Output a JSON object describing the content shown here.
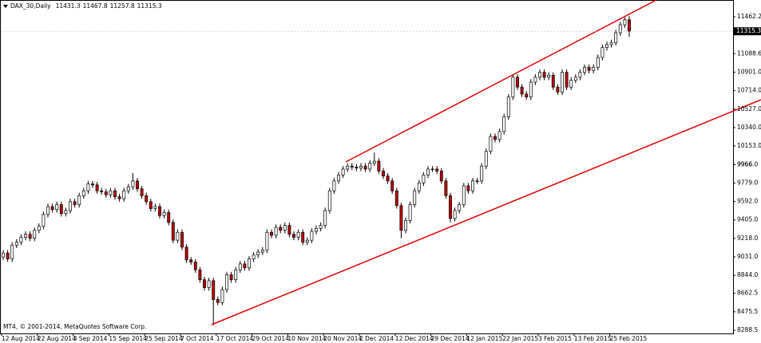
{
  "chart_data": {
    "type": "candlestick",
    "title": "DAX_30,Daily",
    "footer": "MT4, © 2001-2014, MetaQuotes Software Corp.",
    "categories": [
      "12 Aug 2014",
      null,
      null,
      null,
      null,
      null,
      null,
      null,
      "22 Aug 2014",
      null,
      null,
      null,
      null,
      null,
      null,
      null,
      "3 Sep 2014",
      null,
      null,
      null,
      null,
      null,
      null,
      null,
      "15 Sep 2014",
      null,
      null,
      null,
      null,
      null,
      null,
      null,
      "25 Sep 2014",
      null,
      null,
      null,
      null,
      null,
      null,
      null,
      "7 Oct 2014",
      null,
      null,
      null,
      null,
      null,
      null,
      null,
      "17 Oct 2014",
      null,
      null,
      null,
      null,
      null,
      null,
      null,
      "29 Oct 2014",
      null,
      null,
      null,
      null,
      null,
      null,
      null,
      "10 Nov 2014",
      null,
      null,
      null,
      null,
      null,
      null,
      null,
      "20 Nov 2014",
      null,
      null,
      null,
      null,
      null,
      null,
      null,
      "2 Dec 2014",
      null,
      null,
      null,
      null,
      null,
      null,
      null,
      "12 Dec 2014",
      null,
      null,
      null,
      null,
      null,
      null,
      null,
      "29 Dec 2014",
      null,
      null,
      null,
      null,
      null,
      null,
      null,
      "12 Jan 2015",
      null,
      null,
      null,
      null,
      null,
      null,
      null,
      "22 Jan 2015",
      null,
      null,
      null,
      null,
      null,
      null,
      null,
      "3 Feb 2015",
      null,
      null,
      null,
      null,
      null,
      null,
      null,
      "13 Feb 2015",
      null,
      null,
      null,
      null,
      null,
      null,
      null,
      "25 Feb 2015",
      null,
      null,
      null,
      null
    ],
    "open": [
      9030,
      9070,
      9010,
      9150,
      9180,
      9230,
      9260,
      9220,
      9300,
      9340,
      9460,
      9540,
      9510,
      9560,
      9470,
      9500,
      9590,
      9560,
      9650,
      9700,
      9770,
      9760,
      9700,
      9690,
      9660,
      9700,
      9640,
      9620,
      9700,
      9740,
      9800,
      9720,
      9650,
      9590,
      9520,
      9540,
      9450,
      9480,
      9380,
      9200,
      9280,
      9130,
      9000,
      8980,
      8900,
      8800,
      8720,
      8790,
      8600,
      8570,
      8700,
      8850,
      8800,
      8900,
      8960,
      8920,
      9010,
      9050,
      9080,
      9100,
      9280,
      9250,
      9330,
      9300,
      9350,
      9260,
      9230,
      9280,
      9180,
      9200,
      9290,
      9320,
      9350,
      9500,
      9700,
      9800,
      9860,
      9920,
      9950,
      9940,
      9930,
      9950,
      9920,
      9980,
      10000,
      9900,
      9850,
      9800,
      9700,
      9550,
      9300,
      9400,
      9560,
      9700,
      9780,
      9860,
      9920,
      9920,
      9900,
      9800,
      9650,
      9420,
      9500,
      9560,
      9750,
      9700,
      9800,
      9800,
      9950,
      10100,
      10250,
      10220,
      10300,
      10450,
      10650,
      10850,
      10750,
      10680,
      10650,
      10800,
      10850,
      10900,
      10850,
      10870,
      10750,
      10700,
      10900,
      10750,
      10820,
      10850,
      10900,
      10950,
      10920,
      10950,
      11050,
      11150,
      11180,
      11200,
      11300,
      11380,
      11431.3
    ],
    "high": [
      9100,
      9100,
      9180,
      9210,
      9260,
      9290,
      9290,
      9330,
      9370,
      9490,
      9570,
      9570,
      9590,
      9590,
      9530,
      9620,
      9620,
      9680,
      9730,
      9800,
      9800,
      9790,
      9730,
      9720,
      9730,
      9730,
      9670,
      9730,
      9770,
      9880,
      9830,
      9750,
      9680,
      9620,
      9570,
      9570,
      9510,
      9510,
      9410,
      9310,
      9310,
      9160,
      9030,
      9010,
      8930,
      8830,
      8820,
      8820,
      8630,
      8730,
      8880,
      8880,
      8930,
      8990,
      8990,
      9040,
      9080,
      9110,
      9130,
      9310,
      9310,
      9360,
      9360,
      9380,
      9380,
      9290,
      9310,
      9310,
      9230,
      9320,
      9350,
      9380,
      9530,
      9730,
      9830,
      9890,
      9950,
      9980,
      9980,
      9970,
      9980,
      9980,
      10010,
      10087,
      10030,
      9930,
      9880,
      9830,
      9730,
      9580,
      9430,
      9590,
      9730,
      9810,
      9890,
      9950,
      9950,
      9950,
      9930,
      9830,
      9680,
      9530,
      9590,
      9780,
      9780,
      9830,
      9830,
      9980,
      10130,
      10280,
      10280,
      10330,
      10480,
      10680,
      10880,
      10880,
      10780,
      10710,
      10830,
      10880,
      10930,
      10930,
      10900,
      10900,
      10780,
      10930,
      10930,
      10850,
      10880,
      10930,
      10980,
      10980,
      10980,
      11080,
      11180,
      11210,
      11230,
      11330,
      11410,
      11455,
      11467.8
    ],
    "low": [
      9000,
      8980,
      8980,
      9120,
      9150,
      9200,
      9190,
      9190,
      9270,
      9310,
      9430,
      9480,
      9480,
      9440,
      9440,
      9470,
      9530,
      9530,
      9620,
      9670,
      9730,
      9670,
      9660,
      9630,
      9630,
      9610,
      9590,
      9590,
      9670,
      9710,
      9690,
      9620,
      9560,
      9490,
      9490,
      9420,
      9420,
      9350,
      9170,
      9170,
      9100,
      8970,
      8950,
      8870,
      8770,
      8690,
      8690,
      8340,
      8540,
      8540,
      8670,
      8770,
      8770,
      8870,
      8890,
      8890,
      8980,
      9020,
      9050,
      9070,
      9220,
      9220,
      9270,
      9270,
      9230,
      9200,
      9200,
      9150,
      9150,
      9170,
      9260,
      9290,
      9320,
      9470,
      9670,
      9770,
      9830,
      9890,
      9910,
      9900,
      9900,
      9890,
      9890,
      9950,
      9870,
      9820,
      9770,
      9670,
      9520,
      9220,
      9270,
      9370,
      9530,
      9670,
      9750,
      9830,
      9890,
      9870,
      9770,
      9620,
      9380,
      9390,
      9470,
      9530,
      9670,
      9670,
      9770,
      9770,
      9920,
      10070,
      10190,
      10190,
      10270,
      10420,
      10620,
      10720,
      10650,
      10620,
      10620,
      10770,
      10820,
      10820,
      10820,
      10720,
      10670,
      10670,
      10720,
      10720,
      10790,
      10820,
      10870,
      10890,
      10890,
      10920,
      11020,
      11120,
      11150,
      11170,
      11270,
      11350,
      11257.8
    ],
    "close": [
      9070,
      9010,
      9150,
      9180,
      9230,
      9260,
      9220,
      9300,
      9340,
      9460,
      9540,
      9510,
      9560,
      9470,
      9500,
      9590,
      9560,
      9650,
      9700,
      9770,
      9760,
      9700,
      9690,
      9660,
      9700,
      9640,
      9620,
      9700,
      9740,
      9800,
      9720,
      9650,
      9590,
      9520,
      9540,
      9450,
      9480,
      9380,
      9200,
      9280,
      9130,
      9000,
      8980,
      8900,
      8800,
      8720,
      8790,
      8600,
      8570,
      8700,
      8850,
      8800,
      8900,
      8960,
      8920,
      9010,
      9050,
      9080,
      9100,
      9280,
      9250,
      9330,
      9300,
      9350,
      9260,
      9230,
      9280,
      9180,
      9200,
      9290,
      9320,
      9350,
      9500,
      9700,
      9800,
      9860,
      9920,
      9950,
      9940,
      9930,
      9950,
      9920,
      9980,
      10000,
      9900,
      9850,
      9800,
      9700,
      9550,
      9300,
      9400,
      9560,
      9700,
      9780,
      9860,
      9920,
      9920,
      9900,
      9800,
      9650,
      9420,
      9500,
      9560,
      9750,
      9700,
      9800,
      9800,
      9950,
      10100,
      10250,
      10220,
      10300,
      10450,
      10650,
      10850,
      10750,
      10680,
      10650,
      10800,
      10850,
      10900,
      10850,
      10870,
      10750,
      10700,
      10900,
      10750,
      10820,
      10850,
      10900,
      10950,
      10920,
      10950,
      11050,
      11150,
      11180,
      11200,
      11300,
      11380,
      11431.3,
      11315.3
    ],
    "up_color": "#ffffff",
    "down_color": "#c00000",
    "ylim": [
      8256.2,
      11615.6
    ],
    "yticks": [
      11462.2,
      11088.6,
      {
        "value": 10901,
        "label": "10901.0"
      },
      {
        "value": 10714,
        "label": "10714.0"
      },
      {
        "value": 10527,
        "label": "10527.0"
      },
      {
        "value": 10340,
        "label": "10340.0"
      },
      {
        "value": 10153,
        "label": "10153.0"
      },
      9966.0,
      {
        "value": 9966,
        "label": "9966.0"
      },
      {
        "value": 9779,
        "label": "9779.0"
      },
      {
        "value": 9592,
        "label": "9592.0"
      },
      {
        "value": 9405,
        "label": "9405.0"
      },
      {
        "value": 9218,
        "label": "9218.0"
      },
      {
        "value": 9031,
        "label": "9031.0"
      },
      {
        "value": 8844,
        "label": "8844.0"
      },
      8662.5,
      8475.5,
      8288.5
    ]
  }
}
